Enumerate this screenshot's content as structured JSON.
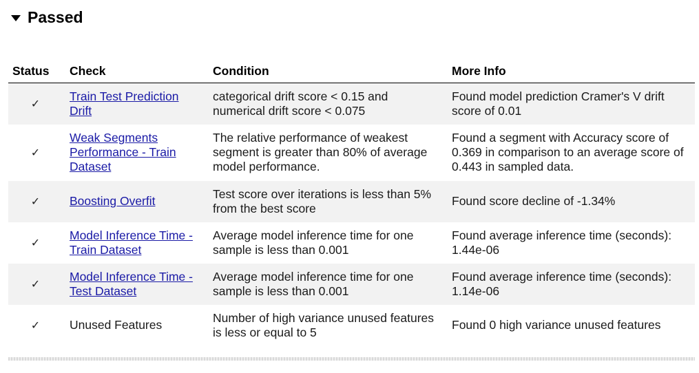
{
  "section": {
    "title": "Passed"
  },
  "table": {
    "headers": {
      "status": "Status",
      "check": "Check",
      "condition": "Condition",
      "more_info": "More Info"
    },
    "rows": [
      {
        "status": "✓",
        "check": "Train Test Prediction Drift",
        "check_is_link": true,
        "condition": "categorical drift score < 0.15 and numerical drift score < 0.075",
        "more_info": "Found model prediction Cramer's V drift score of 0.01"
      },
      {
        "status": "✓",
        "check": "Weak Segments Performance - Train Dataset",
        "check_is_link": true,
        "condition": "The relative performance of weakest segment is greater than 80% of average model performance.",
        "more_info": "Found a segment with Accuracy score of 0.369 in comparison to an average score of 0.443 in sampled data."
      },
      {
        "status": "✓",
        "check": "Boosting Overfit",
        "check_is_link": true,
        "condition": "Test score over iterations is less than 5% from the best score",
        "more_info": "Found score decline of -1.34%"
      },
      {
        "status": "✓",
        "check": "Model Inference Time - Train Dataset",
        "check_is_link": true,
        "condition": "Average model inference time for one sample is less than 0.001",
        "more_info": "Found average inference time (seconds): 1.44e-06"
      },
      {
        "status": "✓",
        "check": "Model Inference Time - Test Dataset",
        "check_is_link": true,
        "condition": "Average model inference time for one sample is less than 0.001",
        "more_info": "Found average inference time (seconds): 1.14e-06"
      },
      {
        "status": "✓",
        "check": "Unused Features",
        "check_is_link": false,
        "condition": "Number of high variance unused features is less or equal to 5",
        "more_info": "Found 0 high variance unused features"
      }
    ]
  }
}
